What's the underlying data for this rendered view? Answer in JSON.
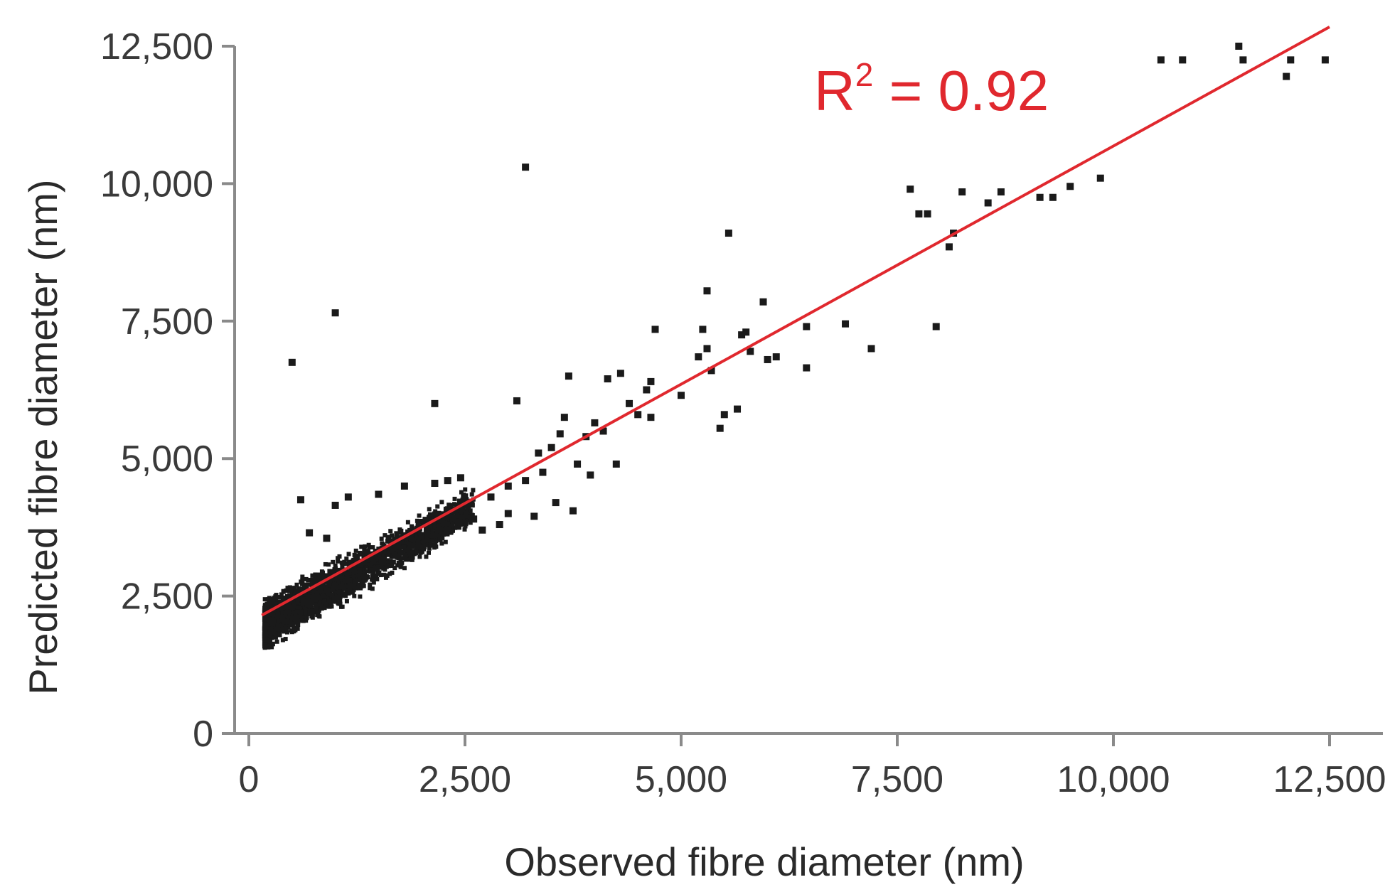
{
  "chart_data": {
    "type": "scatter",
    "xlabel": "Observed fibre diameter (nm)",
    "ylabel": "Predicted fibre diameter (nm)",
    "xlim": [
      0,
      12500
    ],
    "ylim": [
      0,
      12500
    ],
    "xticks": [
      "0",
      "2,500",
      "5,000",
      "7,500",
      "10,000",
      "12,500"
    ],
    "yticks": [
      "0",
      "2,500",
      "5,000",
      "7,500",
      "10,000",
      "12,500"
    ],
    "xtick_values": [
      0,
      2500,
      5000,
      7500,
      10000,
      12500
    ],
    "ytick_values": [
      0,
      2500,
      5000,
      7500,
      10000,
      12500
    ],
    "grid": false,
    "annotation": {
      "base": "R",
      "superscript": "2",
      "rest": " = 0.92"
    },
    "point_color": "#1a1a1a",
    "fit_color": "#e0282e",
    "fit_line": {
      "x": [
        150,
        12500
      ],
      "y": [
        2150,
        12850
      ]
    },
    "series": [
      {
        "values": [
          [
            500,
            6750
          ],
          [
            1000,
            7650
          ],
          [
            2150,
            6000
          ],
          [
            3200,
            10300
          ],
          [
            3100,
            6050
          ],
          [
            3700,
            6500
          ],
          [
            4150,
            6450
          ],
          [
            4300,
            6550
          ],
          [
            4650,
            6400
          ],
          [
            4700,
            7350
          ],
          [
            4650,
            5750
          ],
          [
            4250,
            4900
          ],
          [
            3950,
            4700
          ],
          [
            3750,
            4050
          ],
          [
            3550,
            4200
          ],
          [
            3300,
            3950
          ],
          [
            3000,
            4000
          ],
          [
            2900,
            3800
          ],
          [
            2700,
            3700
          ],
          [
            2600,
            3900
          ],
          [
            5000,
            6150
          ],
          [
            5300,
            8050
          ],
          [
            5250,
            7350
          ],
          [
            5300,
            7000
          ],
          [
            5200,
            6850
          ],
          [
            5350,
            6600
          ],
          [
            5500,
            5800
          ],
          [
            5450,
            5550
          ],
          [
            5650,
            5900
          ],
          [
            5550,
            9100
          ],
          [
            5700,
            7250
          ],
          [
            5750,
            7300
          ],
          [
            5800,
            6950
          ],
          [
            6000,
            6800
          ],
          [
            6100,
            6850
          ],
          [
            5950,
            7850
          ],
          [
            6450,
            7400
          ],
          [
            6450,
            6650
          ],
          [
            6900,
            7450
          ],
          [
            7200,
            7000
          ],
          [
            7950,
            7400
          ],
          [
            7650,
            9900
          ],
          [
            7750,
            9450
          ],
          [
            7850,
            9450
          ],
          [
            8100,
            8850
          ],
          [
            8150,
            9100
          ],
          [
            8250,
            9850
          ],
          [
            8550,
            9650
          ],
          [
            8700,
            9850
          ],
          [
            9150,
            9750
          ],
          [
            9300,
            9750
          ],
          [
            9500,
            9950
          ],
          [
            9850,
            10100
          ],
          [
            10550,
            12250
          ],
          [
            10800,
            12250
          ],
          [
            11450,
            12500
          ],
          [
            11500,
            12250
          ],
          [
            12000,
            11950
          ],
          [
            12050,
            12250
          ],
          [
            12450,
            12250
          ],
          [
            4400,
            6000
          ],
          [
            4500,
            5800
          ],
          [
            4100,
            5500
          ],
          [
            3900,
            5400
          ],
          [
            4000,
            5650
          ],
          [
            3600,
            5450
          ],
          [
            3500,
            5200
          ],
          [
            3800,
            4900
          ],
          [
            3400,
            4750
          ],
          [
            3200,
            4600
          ],
          [
            2150,
            4550
          ],
          [
            2300,
            4600
          ],
          [
            2450,
            4650
          ],
          [
            1800,
            4500
          ],
          [
            1500,
            4350
          ],
          [
            1150,
            4300
          ],
          [
            1000,
            4150
          ],
          [
            600,
            4250
          ],
          [
            700,
            3650
          ],
          [
            900,
            3550
          ],
          [
            2800,
            4300
          ],
          [
            3000,
            4500
          ],
          [
            3350,
            5100
          ],
          [
            3650,
            5750
          ],
          [
            4600,
            6250
          ]
        ]
      }
    ],
    "cloud": [
      {
        "x0": 180,
        "x1": 2600,
        "lo_intercept": 1200,
        "lo_slope": 0.95,
        "hi_intercept": 2400,
        "hi_slope": 0.85,
        "count": 2400
      }
    ]
  }
}
